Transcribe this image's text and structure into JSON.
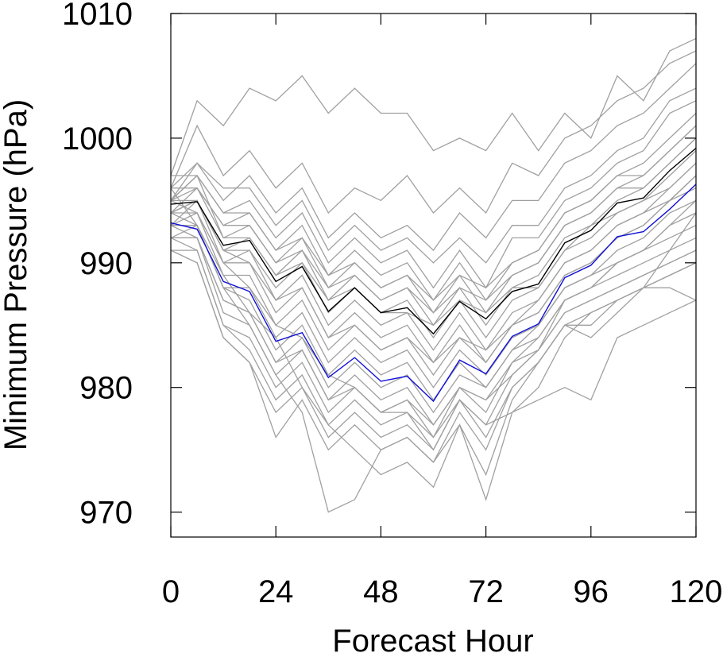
{
  "chart_data": {
    "type": "line",
    "xlabel": "Forecast Hour",
    "ylabel": "Minimum Pressure (hPa)",
    "xlim": [
      0,
      120
    ],
    "ylim": [
      968,
      1010
    ],
    "x_ticks": [
      "0",
      "24",
      "48",
      "72",
      "96",
      "120"
    ],
    "y_ticks": [
      "970",
      "980",
      "990",
      "1000",
      "1010"
    ],
    "grid": false,
    "legend": "none",
    "x": [
      0,
      6,
      12,
      18,
      24,
      30,
      36,
      42,
      48,
      54,
      60,
      66,
      72,
      78,
      84,
      90,
      96,
      102,
      108,
      114,
      120
    ],
    "series": [
      {
        "role": "mean",
        "color": "#000000",
        "values": [
          994.7,
          994.9,
          991.4,
          991.8,
          988.5,
          989.7,
          986.1,
          988.0,
          986.0,
          986.4,
          984.3,
          986.9,
          985.5,
          987.7,
          988.3,
          991.6,
          992.6,
          994.8,
          995.2,
          997.4,
          999.2
        ]
      },
      {
        "role": "highlight",
        "color": "#1010d8",
        "values": [
          993.2,
          992.7,
          988.5,
          987.7,
          983.7,
          984.4,
          980.8,
          982.4,
          980.5,
          980.9,
          978.9,
          982.2,
          981.1,
          984.1,
          985.1,
          988.8,
          989.8,
          992.1,
          992.5,
          994.3,
          996.3
        ]
      },
      {
        "color": "#a0a0a0",
        "values": [
          997,
          1003,
          1001,
          1004,
          1003,
          1005,
          1002,
          1004,
          1002,
          1002,
          999,
          1000,
          999,
          1002,
          999,
          1002,
          1000,
          1005,
          1003,
          1007,
          1008
        ]
      },
      {
        "color": "#a0a0a0",
        "values": [
          996,
          1001,
          997,
          999,
          996,
          998,
          994,
          996,
          995,
          997,
          994,
          996,
          994,
          998,
          997,
          1000,
          1001,
          1003,
          1004,
          1006,
          1007
        ]
      },
      {
        "color": "#a0a0a0",
        "values": [
          995,
          998,
          995,
          997,
          994,
          996,
          992,
          994,
          992,
          993,
          991,
          994,
          992,
          995,
          995,
          998,
          999,
          1001,
          1002,
          1004,
          1006
        ]
      },
      {
        "color": "#a0a0a0",
        "values": [
          996,
          998,
          996,
          996,
          993,
          995,
          991,
          993,
          991,
          992,
          990,
          992,
          990,
          993,
          993,
          996,
          997,
          999,
          1000,
          1003,
          1004
        ]
      },
      {
        "color": "#a0a0a0",
        "values": [
          995,
          997,
          994,
          995,
          992,
          994,
          990,
          992,
          990,
          991,
          988,
          991,
          988,
          992,
          992,
          995,
          996,
          998,
          999,
          1002,
          1003
        ]
      },
      {
        "color": "#a0a0a0",
        "values": [
          995,
          996,
          993,
          994,
          991,
          993,
          989,
          991,
          989,
          990,
          987,
          990,
          987,
          990,
          991,
          994,
          995,
          997,
          998,
          1000,
          1002
        ]
      },
      {
        "color": "#a0a0a0",
        "values": [
          994,
          996,
          992,
          993,
          990,
          992,
          988,
          990,
          988,
          989,
          986,
          989,
          986,
          989,
          990,
          993,
          994,
          996,
          997,
          999,
          1001
        ]
      },
      {
        "color": "#a0a0a0",
        "values": [
          994,
          995,
          991,
          992,
          989,
          991,
          987,
          989,
          987,
          988,
          985,
          988,
          985,
          988,
          989,
          992,
          993,
          995,
          996,
          998,
          1000
        ]
      },
      {
        "color": "#a0a0a0",
        "values": [
          995,
          995,
          991,
          991,
          988,
          990,
          986,
          988,
          986,
          987,
          984,
          987,
          984,
          987,
          988,
          991,
          992,
          994,
          995,
          997,
          999
        ]
      },
      {
        "color": "#a0a0a0",
        "values": [
          993,
          995,
          990,
          991,
          987,
          989,
          985,
          987,
          985,
          986,
          983,
          986,
          983,
          986,
          987,
          990,
          991,
          993,
          994,
          996,
          998
        ]
      },
      {
        "color": "#a0a0a0",
        "values": [
          994,
          994,
          990,
          990,
          986,
          988,
          984,
          986,
          984,
          985,
          982,
          985,
          982,
          985,
          986,
          989,
          990,
          992,
          993,
          995,
          997
        ]
      },
      {
        "color": "#a0a0a0",
        "values": [
          993,
          994,
          989,
          989,
          985,
          987,
          983,
          985,
          983,
          984,
          981,
          984,
          982,
          985,
          986,
          989,
          990,
          992,
          993,
          995,
          996
        ]
      },
      {
        "color": "#a0a0a0",
        "values": [
          993,
          993,
          988,
          988,
          984,
          986,
          982,
          984,
          982,
          983,
          980,
          983,
          981,
          984,
          985,
          988,
          989,
          991,
          992,
          994,
          995
        ]
      },
      {
        "color": "#a0a0a0",
        "values": [
          992,
          993,
          988,
          987,
          983,
          985,
          981,
          983,
          981,
          982,
          979,
          982,
          980,
          983,
          985,
          988,
          989,
          990,
          991,
          993,
          994
        ]
      },
      {
        "color": "#a0a0a0",
        "values": [
          993,
          992,
          987,
          986,
          982,
          984,
          980,
          982,
          980,
          981,
          978,
          981,
          980,
          983,
          984,
          987,
          988,
          990,
          991,
          992,
          993
        ]
      },
      {
        "color": "#a0a0a0",
        "values": [
          992,
          992,
          986,
          985,
          981,
          983,
          979,
          981,
          979,
          980,
          977,
          980,
          979,
          982,
          984,
          987,
          988,
          989,
          990,
          991,
          992
        ]
      },
      {
        "color": "#a0a0a0",
        "values": [
          991,
          991,
          985,
          984,
          980,
          982,
          978,
          980,
          978,
          979,
          976,
          980,
          978,
          982,
          983,
          986,
          987,
          988,
          989,
          990,
          991
        ]
      },
      {
        "color": "#a0a0a0",
        "values": [
          992,
          991,
          985,
          983,
          979,
          981,
          977,
          979,
          977,
          978,
          975,
          979,
          977,
          981,
          983,
          986,
          987,
          988,
          989,
          990,
          991
        ]
      },
      {
        "color": "#a0a0a0",
        "values": [
          991,
          990,
          984,
          982,
          978,
          980,
          976,
          978,
          976,
          977,
          975,
          979,
          976,
          980,
          982,
          985,
          986,
          987,
          988,
          989,
          990
        ]
      },
      {
        "color": "#a0a0a0",
        "values": [
          991,
          990,
          984,
          982,
          976,
          979,
          975,
          977,
          975,
          976,
          974,
          978,
          975,
          980,
          982,
          985,
          985,
          987,
          988,
          989,
          990
        ]
      },
      {
        "color": "#a0a0a0",
        "values": [
          996,
          993,
          988,
          985,
          981,
          978,
          970,
          971,
          975,
          976,
          974,
          977,
          973,
          979,
          982,
          985,
          984,
          986,
          988,
          988,
          987
        ]
      },
      {
        "color": "#a0a0a0",
        "values": [
          994,
          993,
          989,
          986,
          984,
          980,
          977,
          975,
          973,
          974,
          972,
          977,
          971,
          978,
          980,
          984,
          986,
          987,
          988,
          991,
          994
        ]
      },
      {
        "color": "#a0a0a0",
        "values": [
          995,
          994,
          990,
          988,
          985,
          984,
          981,
          980,
          978,
          978,
          976,
          979,
          977,
          978,
          979,
          980,
          979,
          984,
          985,
          986,
          987
        ]
      },
      {
        "color": "#a0a0a0",
        "values": [
          995,
          997,
          992,
          992,
          989,
          990,
          987,
          988,
          986,
          986,
          985,
          987,
          986,
          988,
          988,
          991,
          993,
          994,
          995,
          996,
          998
        ]
      },
      {
        "color": "#a0a0a0",
        "values": [
          996,
          996,
          993,
          993,
          990,
          991,
          988,
          989,
          987,
          988,
          986,
          988,
          987,
          989,
          990,
          993,
          994,
          996,
          996,
          998,
          1000
        ]
      },
      {
        "color": "#a0a0a0",
        "values": [
          997,
          997,
          994,
          994,
          991,
          992,
          989,
          990,
          988,
          989,
          987,
          989,
          988,
          990,
          991,
          994,
          995,
          997,
          997,
          999,
          1001
        ]
      },
      {
        "color": "#a0a0a0",
        "values": [
          994,
          995,
          991,
          990,
          987,
          988,
          984,
          985,
          983,
          984,
          982,
          984,
          983,
          985,
          987,
          990,
          991,
          993,
          994,
          995,
          997
        ]
      },
      {
        "color": "#a0a0a0",
        "values": [
          992,
          992,
          987,
          986,
          982,
          983,
          979,
          980,
          978,
          979,
          977,
          980,
          979,
          981,
          983,
          987,
          988,
          990,
          991,
          993,
          995
        ]
      }
    ]
  }
}
